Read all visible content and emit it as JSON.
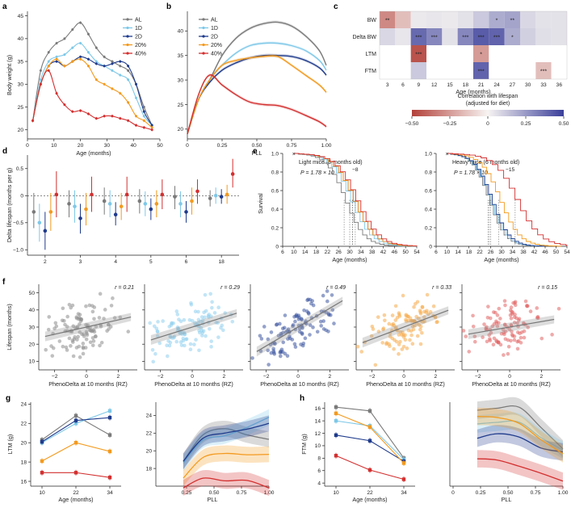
{
  "colors": {
    "AL": "#7a7a7a",
    "1D": "#7ec8e8",
    "2D": "#1f3b8c",
    "20%": "#f39a1e",
    "40%": "#d32f2f"
  },
  "panels": {
    "a": {
      "label": "a",
      "xlabel": "Age (months)",
      "ylabel": "Body weight (g)",
      "xticks": [
        0,
        10,
        20,
        30,
        40,
        50
      ],
      "yticks": [
        20,
        25,
        30,
        35,
        40,
        45
      ],
      "xlim": [
        0,
        50
      ],
      "ylim": [
        18,
        46
      ],
      "legend": [
        "AL",
        "1D",
        "2D",
        "20%",
        "40%"
      ]
    },
    "b": {
      "label": "b",
      "xlabel": "PLL",
      "xticks": [
        "0",
        "0.25",
        "0.50",
        "0.75",
        "1.00"
      ],
      "yticks": [
        20,
        25,
        30,
        35,
        40
      ],
      "xlim": [
        0,
        1
      ],
      "ylim": [
        18,
        44
      ],
      "legend": [
        "AL",
        "1D",
        "2D",
        "20%",
        "40%"
      ]
    },
    "c": {
      "label": "c",
      "rows": [
        "BW",
        "Delta BW",
        "LTM",
        "FTM"
      ],
      "cols": [
        "3",
        "6",
        "9",
        "12",
        "15",
        "18",
        "21",
        "24",
        "27",
        "30",
        "33",
        "36"
      ],
      "xlabel": "Age (months)",
      "values": [
        [
          -0.3,
          -0.15,
          0.03,
          0.04,
          0.03,
          0.05,
          0.12,
          0.2,
          0.22,
          0.08,
          0.05,
          0.05
        ],
        [
          0.08,
          0.04,
          0.38,
          0.3,
          0.05,
          0.3,
          0.42,
          0.4,
          0.2,
          0.1,
          0.06,
          0.05
        ],
        [
          null,
          null,
          -0.45,
          null,
          null,
          null,
          -0.25,
          null,
          null,
          null,
          null,
          null
        ],
        [
          null,
          null,
          0.12,
          null,
          null,
          null,
          0.4,
          null,
          null,
          null,
          -0.15,
          null
        ]
      ],
      "stars": [
        [
          "**",
          "",
          "",
          "",
          "",
          "",
          "",
          "*",
          "**",
          "",
          "",
          ""
        ],
        [
          "",
          "",
          "***",
          "***",
          "",
          "***",
          "***",
          "***",
          "*",
          "",
          "",
          ""
        ],
        [
          "",
          "",
          "***",
          "",
          "",
          "",
          "*",
          "",
          "",
          "",
          "",
          ""
        ],
        [
          "",
          "",
          "",
          "",
          "",
          "",
          "***",
          "",
          "",
          "",
          "***",
          ""
        ]
      ],
      "colorbar_title": "Correlation with lifespan",
      "colorbar_subtitle": "(adjusted for diet)",
      "colorbar_ticks": [
        "−0.50",
        "−0.25",
        "0",
        "0.25",
        "0.50"
      ]
    },
    "d": {
      "label": "d",
      "ylabel": "Delta lifespan (months per g)",
      "groups": [
        "2",
        "3",
        "4",
        "5",
        "6",
        "18"
      ],
      "yticks": [
        "−1.0",
        "−0.5",
        "0",
        "0.5"
      ],
      "ylim": [
        -1.1,
        0.75
      ],
      "points": {
        "AL": [
          [
            -0.3,
            -0.6,
            0.05
          ],
          [
            -0.15,
            -0.4,
            0.1
          ],
          [
            -0.1,
            -0.35,
            0.15
          ],
          [
            -0.1,
            -0.33,
            0.12
          ],
          [
            -0.02,
            -0.25,
            0.18
          ],
          [
            -0.05,
            -0.2,
            0.1
          ]
        ],
        "1D": [
          [
            -0.5,
            -0.85,
            -0.15
          ],
          [
            -0.2,
            -0.5,
            0.1
          ],
          [
            -0.15,
            -0.4,
            0.1
          ],
          [
            -0.15,
            -0.38,
            0.08
          ],
          [
            -0.15,
            -0.4,
            0.08
          ],
          [
            0.0,
            -0.15,
            0.15
          ]
        ],
        "2D": [
          [
            -0.65,
            -1.0,
            -0.3
          ],
          [
            -0.42,
            -0.7,
            -0.15
          ],
          [
            -0.35,
            -0.55,
            -0.12
          ],
          [
            -0.25,
            -0.45,
            -0.05
          ],
          [
            -0.3,
            -0.5,
            -0.1
          ],
          [
            -0.02,
            -0.15,
            0.12
          ]
        ],
        "20%": [
          [
            -0.3,
            -0.65,
            0.05
          ],
          [
            -0.25,
            -0.55,
            0.05
          ],
          [
            -0.2,
            -0.45,
            0.05
          ],
          [
            -0.15,
            -0.4,
            0.1
          ],
          [
            -0.1,
            -0.35,
            0.15
          ],
          [
            0.02,
            -0.15,
            0.2
          ]
        ],
        "40%": [
          [
            0.02,
            -0.4,
            0.45
          ],
          [
            0.02,
            -0.3,
            0.35
          ],
          [
            0.02,
            -0.3,
            0.35
          ],
          [
            0.02,
            -0.25,
            0.3
          ],
          [
            0.08,
            -0.15,
            0.3
          ],
          [
            0.4,
            0.15,
            0.68
          ]
        ]
      }
    },
    "e": {
      "label": "e",
      "ylabel": "Survival",
      "xlabel": "Age (months)",
      "xticks": [
        "6",
        "10",
        "14",
        "18",
        "22",
        "26",
        "30",
        "34",
        "38",
        "42",
        "46",
        "50",
        "54"
      ],
      "yticks": [
        "0",
        "0.2",
        "0.4",
        "0.6",
        "0.8",
        "1.0"
      ],
      "subplots": [
        {
          "title": "Light mice (6 months old)",
          "p": "P = 1.78 × 10",
          "exp": "−8",
          "medians": {
            "AL": 28,
            "1D": 30,
            "2D": 31,
            "20%": 31,
            "40%": 32
          }
        },
        {
          "title": "Heavy mice (6 months old)",
          "p": "P = 1.78 × 10",
          "exp": "−15",
          "medians": {
            "AL": 25,
            "1D": 25.5,
            "2D": 26,
            "20%": 29,
            "40%": 35
          }
        }
      ]
    },
    "f": {
      "label": "f",
      "ylabel": "Lifespan (months)",
      "xlabel": "PhenoDelta at 10 months (RZ)",
      "yticks": [
        "10",
        "20",
        "30",
        "40",
        "50"
      ],
      "xticks": [
        "−2",
        "0",
        "2"
      ],
      "r": [
        "r = 0.21",
        "r = 0.29",
        "r = 0.49",
        "r = 0.33",
        "r = 0.15"
      ]
    },
    "g": {
      "label": "g",
      "ylabel": "LTM (g)",
      "xlabel_left": "Age (months)",
      "xlabel_right": "PLL",
      "left_xticks": [
        "10",
        "22",
        "34"
      ],
      "left_yticks": [
        "16",
        "18",
        "20",
        "22",
        "24"
      ],
      "right_xticks": [
        "0.25",
        "0.50",
        "0.75",
        "1.00"
      ],
      "right_yticks": [
        "18",
        "20",
        "22",
        "24"
      ],
      "series": {
        "AL": [
          20.3,
          22.8,
          20.8
        ],
        "1D": [
          20.0,
          22.0,
          23.3
        ],
        "2D": [
          20.1,
          22.3,
          22.6
        ],
        "20%": [
          18.1,
          20.0,
          19.1
        ],
        "40%": [
          16.9,
          16.9,
          16.4
        ]
      }
    },
    "h": {
      "label": "h",
      "ylabel": "FTM (g)",
      "xlabel_left": "Age (months)",
      "xlabel_right": "PLL",
      "left_xticks": [
        "10",
        "22",
        "34"
      ],
      "left_yticks": [
        "4",
        "6",
        "8",
        "10",
        "12",
        "14",
        "16"
      ],
      "right_xticks": [
        "0",
        "0.25",
        "0.50",
        "0.75",
        "1.00"
      ],
      "series": {
        "AL": [
          16.2,
          15.6,
          8.0
        ],
        "1D": [
          14.0,
          13.2,
          7.8
        ],
        "2D": [
          11.7,
          10.8,
          7.5
        ],
        "20%": [
          15.2,
          13.0,
          7.2
        ],
        "40%": [
          8.4,
          6.1,
          4.6
        ]
      }
    }
  },
  "chart_data": [
    {
      "type": "line",
      "title": "a",
      "xlabel": "Age (months)",
      "ylabel": "Body weight (g)",
      "xlim": [
        0,
        50
      ],
      "ylim": [
        18,
        46
      ],
      "x": [
        2,
        5,
        8,
        11,
        14,
        17,
        20,
        23,
        26,
        29,
        32,
        35,
        38,
        41,
        44,
        47
      ],
      "series": [
        {
          "name": "AL",
          "values": [
            22,
            33,
            37,
            39,
            40,
            42,
            43.5,
            41,
            38,
            36,
            35,
            34,
            33,
            30,
            25,
            21
          ]
        },
        {
          "name": "1D",
          "values": [
            22,
            31,
            35,
            36,
            36.5,
            38,
            39,
            37,
            35,
            34,
            33,
            32,
            31,
            27,
            23,
            21
          ]
        },
        {
          "name": "2D",
          "values": [
            22,
            30,
            34,
            35,
            34,
            35,
            36,
            35.5,
            34.5,
            34,
            34.5,
            35,
            34,
            30,
            24,
            21
          ]
        },
        {
          "name": "20%",
          "values": [
            22,
            30,
            34,
            35.5,
            34,
            35,
            35.5,
            34,
            31,
            30,
            29,
            28,
            26,
            23,
            22,
            20.5
          ]
        },
        {
          "name": "40%",
          "values": [
            22,
            30,
            33,
            28,
            25.5,
            24,
            24.2,
            23.5,
            22.5,
            23,
            23,
            22.5,
            22,
            21,
            20.5,
            20
          ]
        }
      ]
    },
    {
      "type": "line",
      "title": "b",
      "xlabel": "PLL",
      "ylabel": "",
      "xlim": [
        0,
        1
      ],
      "ylim": [
        18,
        44
      ],
      "x": [
        0,
        0.08,
        0.16,
        0.25,
        0.35,
        0.45,
        0.55,
        0.65,
        0.75,
        0.85,
        0.95,
        1.0
      ],
      "series": [
        {
          "name": "AL",
          "values": [
            19,
            26,
            30,
            35,
            38.5,
            40.5,
            41.5,
            41.8,
            41,
            39,
            36,
            33
          ]
        },
        {
          "name": "1D",
          "values": [
            19,
            26,
            30,
            33,
            35.5,
            37,
            37.5,
            37.5,
            37,
            36,
            34,
            32
          ]
        },
        {
          "name": "2D",
          "values": [
            19,
            26,
            29.5,
            32,
            33.5,
            34.5,
            35,
            35,
            34.8,
            34,
            32.5,
            31
          ]
        },
        {
          "name": "20%",
          "values": [
            19,
            26,
            30,
            33,
            34,
            34.5,
            34.8,
            34.8,
            33,
            31,
            29,
            27.5
          ]
        },
        {
          "name": "40%",
          "values": [
            19,
            27,
            31,
            29,
            27,
            25.5,
            25,
            24.8,
            24,
            22.8,
            21.5,
            20.5
          ]
        }
      ]
    },
    {
      "type": "heatmap",
      "title": "c",
      "xlabel": "Age (months)",
      "categories": [
        "3",
        "6",
        "9",
        "12",
        "15",
        "18",
        "21",
        "24",
        "27",
        "30",
        "33",
        "36"
      ],
      "rows": [
        "BW",
        "Delta BW",
        "LTM",
        "FTM"
      ],
      "range": [
        -0.5,
        0.5
      ]
    }
  ]
}
